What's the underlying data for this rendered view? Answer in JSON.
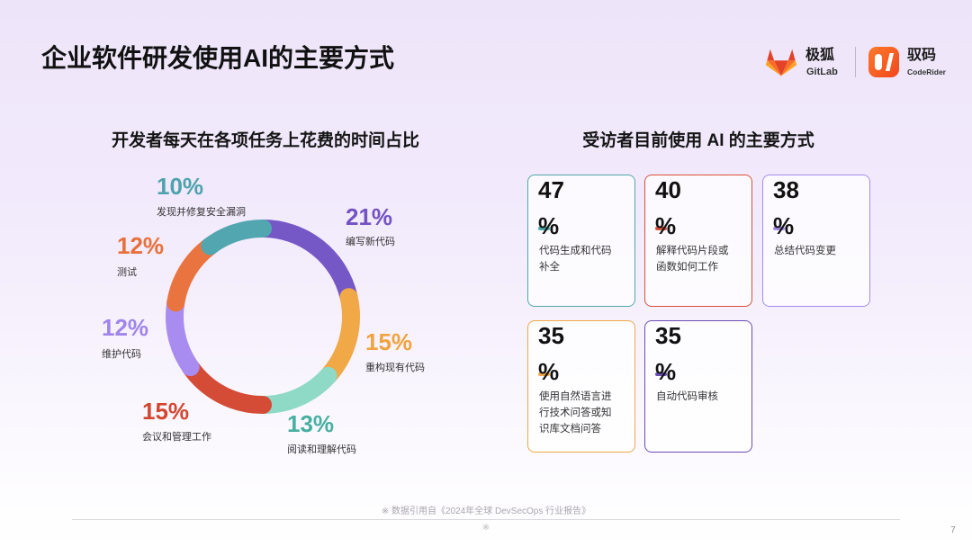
{
  "slide": {
    "title": "企业软件研发使用AI的主要方式",
    "footnote": "※ 数据引用自《2024年全球 DevSecOps 行业报告》",
    "footnote_mark": "※",
    "page_number": "7"
  },
  "logos": {
    "gitlab": {
      "name_cn": "极狐",
      "name_en": "GitLab",
      "icon": "gitlab-fox-icon"
    },
    "coderider": {
      "name_cn": "驭码",
      "name_en": "CodeRider",
      "icon": "coderider-icon"
    }
  },
  "chart_data": {
    "type": "pie",
    "donut": true,
    "title": "开发者每天在各项任务上花费的时间占比",
    "unit": "%",
    "categories": [
      "编写新代码",
      "重构现有代码",
      "阅读和理解代码",
      "会议和管理工作",
      "维护代码",
      "测试",
      "发现并修复安全漏洞"
    ],
    "values": [
      21,
      15,
      13,
      15,
      12,
      12,
      10
    ],
    "colors": [
      "#7657c6",
      "#f1a846",
      "#8edac7",
      "#d44b36",
      "#a98cf0",
      "#e9743f",
      "#52a6b0"
    ],
    "label_colors": [
      "#7352c2",
      "#f0a33e",
      "#47b0a1",
      "#d2472f",
      "#a084ec",
      "#e8703a",
      "#4ea3ad"
    ],
    "legend": "none"
  },
  "right": {
    "heading": "受访者目前使用 AI 的主要方式",
    "cards": [
      {
        "value": 47,
        "unit": "%",
        "label": "代码生成和代码补全",
        "color": "#4fa9a9"
      },
      {
        "value": 40,
        "unit": "%",
        "label": "解释代码片段或函数如何工作",
        "color": "#d9503b"
      },
      {
        "value": 38,
        "unit": "%",
        "label": "总结代码变更",
        "color": "#a68bee"
      },
      {
        "value": 35,
        "unit": "%",
        "label": "使用自然语言进行技术问答或知识库文档问答",
        "color": "#f0a848"
      },
      {
        "value": 35,
        "unit": "%",
        "label": "自动代码审核",
        "color": "#6b4eb6"
      }
    ]
  }
}
